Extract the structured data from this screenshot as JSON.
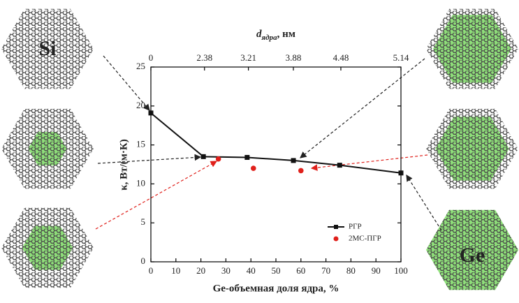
{
  "chart_data": {
    "type": "line",
    "xlabel": "Ge-объемная доля ядра, %",
    "ylabel": "κ, Вт/(м·К)",
    "x2label": [
      "d",
      "ядра",
      ", нм"
    ],
    "xlim": [
      0,
      100
    ],
    "xticks": [
      0,
      10,
      20,
      30,
      40,
      50,
      60,
      70,
      80,
      90,
      100
    ],
    "ylim": [
      0,
      25
    ],
    "yticks": [
      0,
      5,
      10,
      15,
      20,
      25
    ],
    "x2lim": [
      0,
      5.14
    ],
    "x2scale": "square",
    "x2ticks": [
      0,
      2.38,
      3.21,
      3.88,
      4.48,
      5.14
    ],
    "legend": "lower right",
    "series": [
      {
        "name": "РГР",
        "color": "#111111",
        "marker": "square",
        "line": true,
        "x": [
          0,
          21,
          38.5,
          57,
          75.5,
          100
        ],
        "values": [
          19.1,
          13.5,
          13.4,
          13.0,
          12.4,
          11.4
        ]
      },
      {
        "name": "2МС-ПГР",
        "color": "#e0201b",
        "marker": "circle",
        "line": false,
        "x": [
          27,
          41,
          60
        ],
        "values": [
          13.2,
          12.0,
          11.7
        ]
      }
    ]
  },
  "labels": {
    "si": "Si",
    "ge": "Ge"
  }
}
